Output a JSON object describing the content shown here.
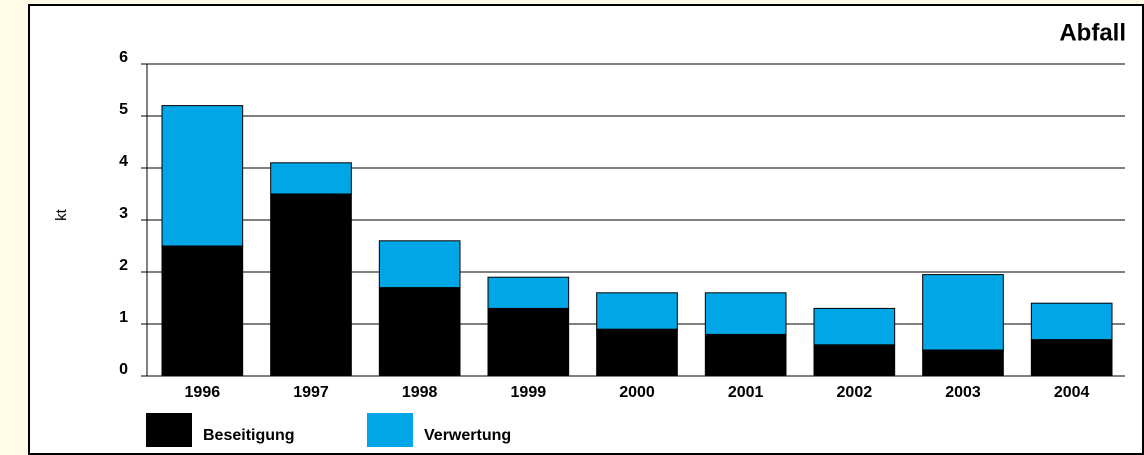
{
  "chart_data": {
    "type": "stacked_bar",
    "title": "Abfall",
    "y_label": "kt",
    "categories": [
      "1996",
      "1997",
      "1998",
      "1999",
      "2000",
      "2001",
      "2002",
      "2003",
      "2004"
    ],
    "series": [
      {
        "name": "Beseitigung",
        "color": "#000000",
        "values": [
          2.5,
          3.5,
          1.7,
          1.3,
          0.9,
          0.8,
          0.6,
          0.5,
          0.7
        ]
      },
      {
        "name": "Verwertung",
        "color": "#00a6e6",
        "values": [
          2.7,
          0.6,
          0.9,
          0.6,
          0.7,
          0.8,
          0.7,
          1.45,
          0.7
        ]
      }
    ],
    "ylim": [
      0,
      6
    ],
    "yticks": [
      0,
      1,
      2,
      3,
      4,
      5,
      6
    ],
    "grid": true
  }
}
